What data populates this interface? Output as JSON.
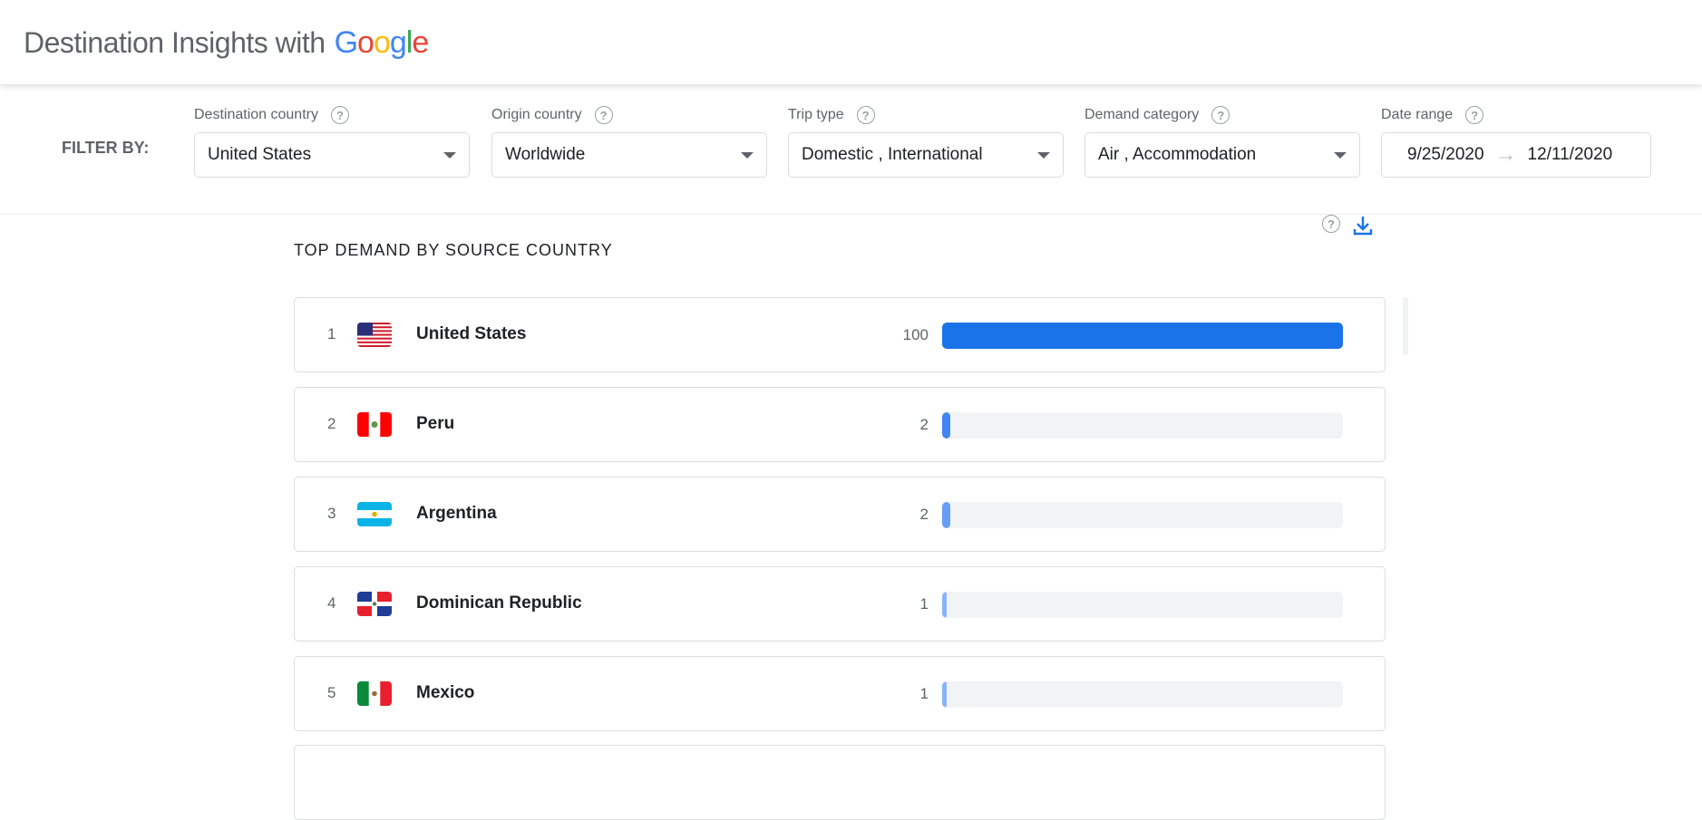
{
  "header": {
    "title": "Destination Insights with",
    "logo": "Google",
    "logo_colors": [
      "#4285f4",
      "#ea4335",
      "#fbbc05",
      "#4285f4",
      "#34a853",
      "#ea4335"
    ]
  },
  "filters": {
    "label": "FILTER BY:",
    "items": [
      {
        "label": "Destination country",
        "value": "United States"
      },
      {
        "label": "Origin country",
        "value": "Worldwide"
      },
      {
        "label": "Trip type",
        "value": "Domestic , International"
      },
      {
        "label": "Demand category",
        "value": "Air , Accommodation"
      }
    ],
    "date_range": {
      "label": "Date range",
      "start": "9/25/2020",
      "end": "12/11/2020"
    }
  },
  "section": {
    "title": "TOP DEMAND BY SOURCE COUNTRY",
    "help_icon": "help-circle-icon",
    "download_icon": "download-icon"
  },
  "rows": [
    {
      "rank": "1",
      "country": "United States",
      "value": 100,
      "value_label": "100",
      "flag": "us",
      "color": "#1a73e8"
    },
    {
      "rank": "2",
      "country": "Peru",
      "value": 2,
      "value_label": "2",
      "flag": "pe",
      "color": "#4285f4"
    },
    {
      "rank": "3",
      "country": "Argentina",
      "value": 2,
      "value_label": "2",
      "flag": "ar",
      "color": "#669df6"
    },
    {
      "rank": "4",
      "country": "Dominican Republic",
      "value": 1,
      "value_label": "1",
      "flag": "do",
      "color": "#8ab4f8"
    },
    {
      "rank": "5",
      "country": "Mexico",
      "value": 1,
      "value_label": "1",
      "flag": "mx",
      "color": "#8ab4f8"
    }
  ]
}
